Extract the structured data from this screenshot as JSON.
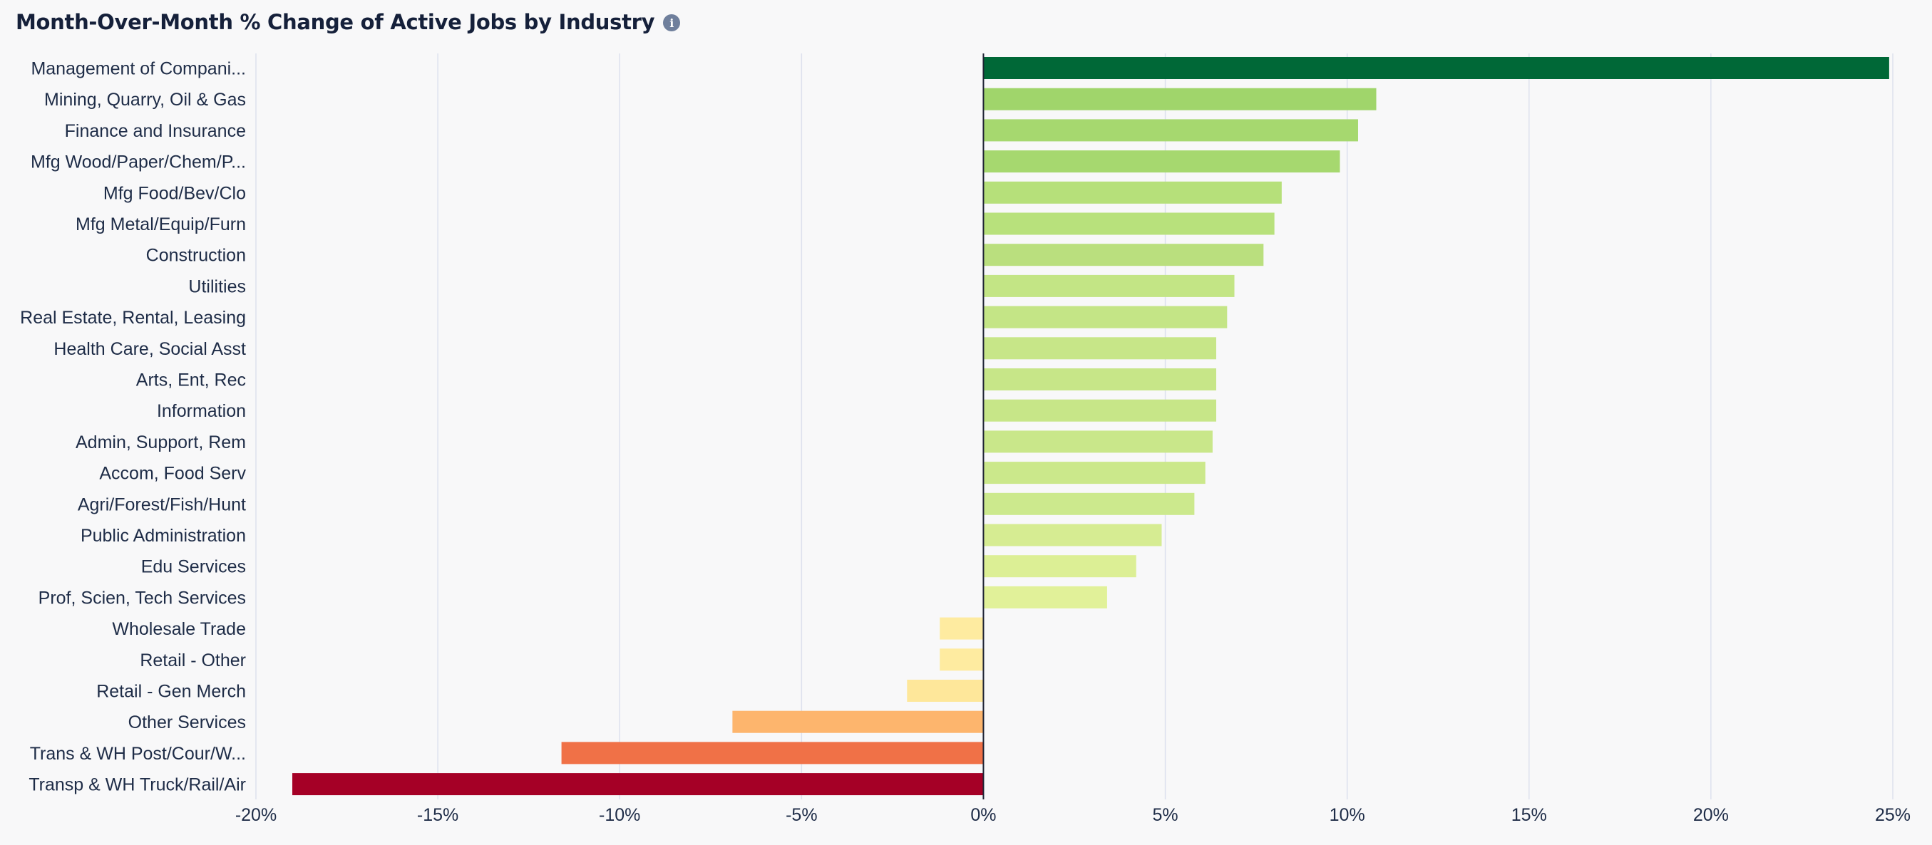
{
  "header": {
    "title": "Month-Over-Month % Change of Active Jobs by Industry",
    "info_icon": "info-icon"
  },
  "chart_data": {
    "type": "bar",
    "orientation": "horizontal",
    "title": "Month-Over-Month % Change of Active Jobs by Industry",
    "xlabel": "",
    "ylabel": "",
    "xlim": [
      -20,
      25
    ],
    "x_ticks": [
      "-20%",
      "-15%",
      "-10%",
      "-5%",
      "0%",
      "5%",
      "10%",
      "15%",
      "20%",
      "25%"
    ],
    "grid": "vertical",
    "legend": "none",
    "categories": [
      "Management of Compani...",
      "Mining, Quarry, Oil & Gas",
      "Finance and Insurance",
      "Mfg Wood/Paper/Chem/P...",
      "Mfg Food/Bev/Clo",
      "Mfg Metal/Equip/Furn",
      "Construction",
      "Utilities",
      "Real Estate, Rental, Leasing",
      "Health Care, Social Asst",
      "Arts, Ent, Rec",
      "Information",
      "Admin, Support, Rem",
      "Accom, Food Serv",
      "Agri/Forest/Fish/Hunt",
      "Public Administration",
      "Edu Services",
      "Prof, Scien, Tech Services",
      "Wholesale Trade",
      "Retail - Other",
      "Retail - Gen Merch",
      "Other Services",
      "Trans & WH Post/Cour/W...",
      "Transp & WH Truck/Rail/Air"
    ],
    "values": [
      24.9,
      10.8,
      10.3,
      9.8,
      8.2,
      8.0,
      7.7,
      6.9,
      6.7,
      6.4,
      6.4,
      6.4,
      6.3,
      6.1,
      5.8,
      4.9,
      4.2,
      3.4,
      -1.2,
      -1.2,
      -2.1,
      -6.9,
      -11.6,
      -19.0
    ],
    "colors": [
      "#006837",
      "#a0d56b",
      "#a6d86f",
      "#a6d86f",
      "#b6e07a",
      "#b8e17c",
      "#badf7e",
      "#c3e585",
      "#c4e586",
      "#c7e688",
      "#c7e688",
      "#c7e688",
      "#c9e78a",
      "#cbe88b",
      "#cce98d",
      "#d6ec92",
      "#dcef95",
      "#e1f199",
      "#feeba0",
      "#feeba0",
      "#fee79a",
      "#fdb56d",
      "#f07147",
      "#a50026"
    ]
  }
}
